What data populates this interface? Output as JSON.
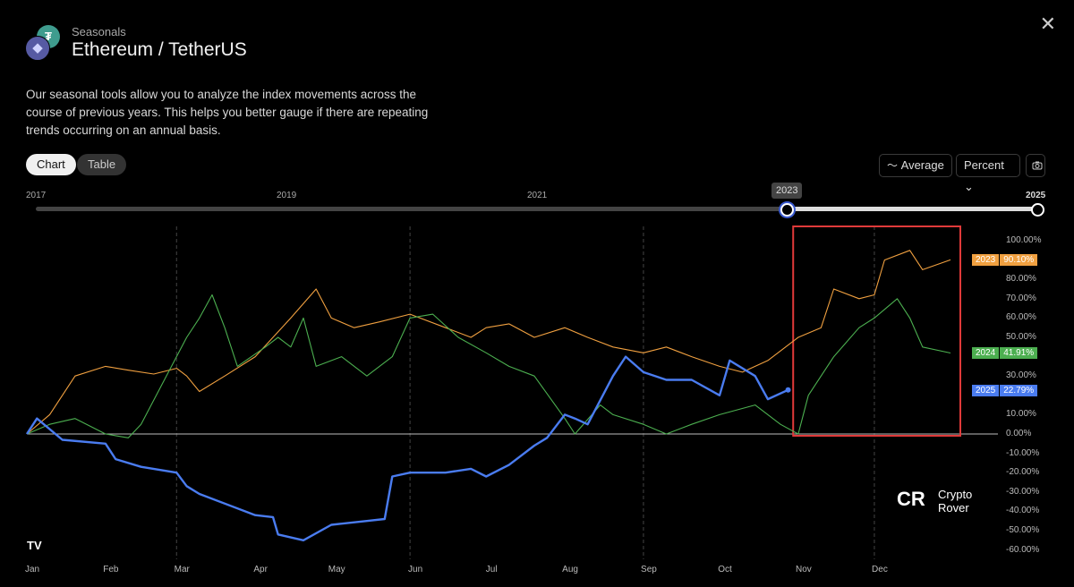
{
  "header": {
    "subtitle": "Seasonals",
    "title": "Ethereum / TetherUS",
    "close_icon": "close-icon",
    "tether_symbol": "₮",
    "eth_symbol": "◆"
  },
  "description": "Our seasonal tools allow you to analyze the index movements across the course of previous years. This helps you better gauge if there are repeating trends occurring on an annual basis.",
  "view_tabs": [
    {
      "label": "Chart",
      "active": true
    },
    {
      "label": "Table",
      "active": false
    }
  ],
  "toolbar": {
    "average_label": "Average",
    "average_icon": "trend-line-icon",
    "units_label": "Percent",
    "units_chevron": "⌄",
    "camera_icon": "camera-icon"
  },
  "range_slider": {
    "labels": [
      "2017",
      "2019",
      "2021",
      "2025"
    ],
    "start_value": "2023",
    "end_value": "2025"
  },
  "watermark": {
    "line1": "Crypto",
    "line2": "Rover",
    "mark": "CR"
  },
  "chart_data": {
    "type": "line",
    "title": "",
    "xlabel": "",
    "ylabel": "",
    "x_tick_labels": [
      "Jan",
      "Feb",
      "Mar",
      "Apr",
      "May",
      "Jun",
      "Jul",
      "Aug",
      "Sep",
      "Oct",
      "Nov",
      "Dec"
    ],
    "y_tick_labels": [
      "100.00%",
      "80.00%",
      "70.00%",
      "60.00%",
      "50.00%",
      "30.00%",
      "10.00%",
      "0.00%",
      "-10.00%",
      "-20.00%",
      "-30.00%",
      "-40.00%",
      "-50.00%",
      "-60.00%"
    ],
    "ylim": [
      -60,
      100
    ],
    "grid": "vertical dashed at quarter starts",
    "highlight_box": {
      "from": "11-01",
      "to": "12-31",
      "color": "#e03a3a"
    },
    "series": [
      {
        "name": "2023",
        "color": "#f0a040",
        "last_value": "90.10%",
        "x": [
          "01-01",
          "01-10",
          "01-20",
          "02-01",
          "02-10",
          "02-20",
          "03-01",
          "03-05",
          "03-10",
          "03-20",
          "04-01",
          "04-15",
          "04-25",
          "05-01",
          "05-10",
          "05-20",
          "06-01",
          "06-15",
          "06-25",
          "07-01",
          "07-10",
          "07-20",
          "08-01",
          "08-10",
          "08-20",
          "09-01",
          "09-10",
          "09-20",
          "10-01",
          "10-10",
          "10-20",
          "11-01",
          "11-10",
          "11-15",
          "11-25",
          "12-01",
          "12-05",
          "12-15",
          "12-20",
          "12-31"
        ],
        "y": [
          0,
          10,
          30,
          35,
          33,
          31,
          34,
          30,
          22,
          30,
          40,
          60,
          75,
          60,
          55,
          58,
          62,
          55,
          50,
          55,
          57,
          50,
          55,
          50,
          45,
          42,
          45,
          40,
          35,
          32,
          38,
          50,
          55,
          75,
          70,
          72,
          90,
          95,
          85,
          90.1
        ]
      },
      {
        "name": "2024",
        "color": "#4caf50",
        "last_value": "41.91%",
        "x": [
          "01-01",
          "01-10",
          "01-20",
          "02-01",
          "02-10",
          "02-15",
          "02-25",
          "03-05",
          "03-10",
          "03-15",
          "03-20",
          "03-25",
          "04-05",
          "04-10",
          "04-15",
          "04-20",
          "04-25",
          "05-05",
          "05-15",
          "05-25",
          "06-01",
          "06-10",
          "06-20",
          "07-01",
          "07-10",
          "07-20",
          "08-01",
          "08-05",
          "08-15",
          "08-20",
          "09-01",
          "09-10",
          "09-20",
          "10-01",
          "10-15",
          "10-25",
          "11-01",
          "11-05",
          "11-15",
          "11-25",
          "12-01",
          "12-10",
          "12-15",
          "12-20",
          "12-31"
        ],
        "y": [
          0,
          5,
          8,
          0,
          -2,
          5,
          30,
          50,
          60,
          72,
          55,
          35,
          45,
          50,
          45,
          60,
          35,
          40,
          30,
          40,
          60,
          62,
          50,
          42,
          35,
          30,
          8,
          0,
          15,
          10,
          5,
          0,
          5,
          10,
          15,
          5,
          0,
          20,
          40,
          55,
          60,
          70,
          60,
          45,
          41.91
        ]
      },
      {
        "name": "2025",
        "color": "#4a7cf0",
        "last_value": "22.79%",
        "x": [
          "01-01",
          "01-05",
          "01-15",
          "02-01",
          "02-05",
          "02-15",
          "03-01",
          "03-05",
          "03-10",
          "04-01",
          "04-08",
          "04-10",
          "04-20",
          "05-01",
          "05-15",
          "05-22",
          "05-25",
          "06-01",
          "06-15",
          "06-25",
          "07-01",
          "07-10",
          "07-20",
          "07-25",
          "08-01",
          "08-05",
          "08-10",
          "08-20",
          "08-25",
          "09-01",
          "09-10",
          "09-20",
          "10-01",
          "10-05",
          "10-15",
          "10-20",
          "10-28"
        ],
        "y": [
          0,
          8,
          -3,
          -5,
          -13,
          -17,
          -20,
          -27,
          -31,
          -42,
          -43,
          -52,
          -55,
          -47,
          -45,
          -44,
          -22,
          -20,
          -20,
          -18,
          -22,
          -16,
          -6,
          -2,
          10,
          8,
          5,
          30,
          40,
          32,
          28,
          28,
          20,
          38,
          30,
          18,
          22.79
        ]
      }
    ]
  }
}
